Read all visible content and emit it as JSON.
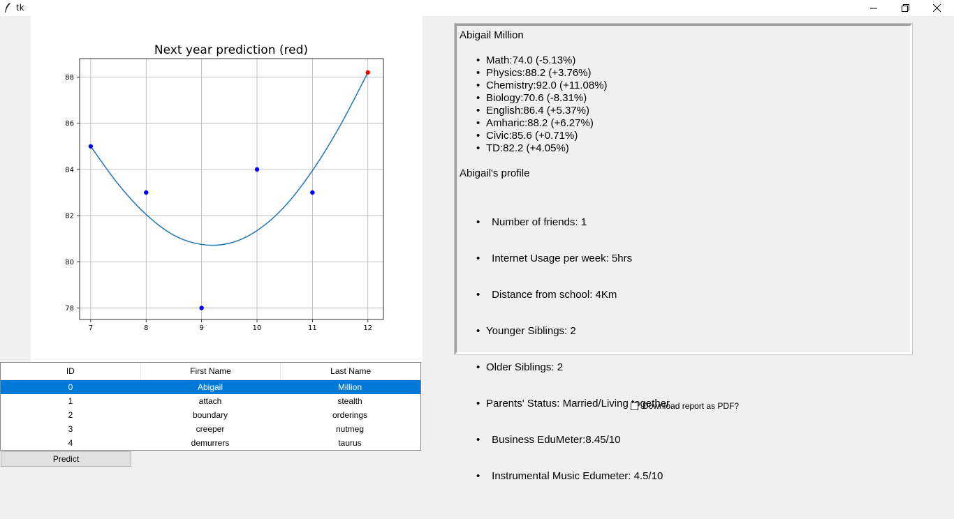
{
  "window": {
    "title": "tk"
  },
  "chart_data": {
    "type": "scatter",
    "title": "Next year prediction (red)",
    "xlabel": "",
    "ylabel": "",
    "xlim": [
      6.8,
      12.28
    ],
    "ylim": [
      77.5,
      88.8
    ],
    "xticks": [
      7,
      8,
      9,
      10,
      11,
      12
    ],
    "yticks": [
      78,
      80,
      82,
      84,
      86,
      88
    ],
    "grid": true,
    "points": [
      {
        "x": 7,
        "y": 85,
        "color": "#0000ff"
      },
      {
        "x": 8,
        "y": 83,
        "color": "#0000ff"
      },
      {
        "x": 9,
        "y": 78,
        "color": "#0000ff"
      },
      {
        "x": 10,
        "y": 84,
        "color": "#0000ff"
      },
      {
        "x": 11,
        "y": 83,
        "color": "#0000ff"
      },
      {
        "x": 12,
        "y": 88.2,
        "color": "#ff0000"
      }
    ],
    "fit_curve": {
      "color": "#1f77b4",
      "points": [
        [
          7,
          85.0
        ],
        [
          7.5,
          83.35
        ],
        [
          8,
          82.05
        ],
        [
          8.5,
          81.15
        ],
        [
          9,
          80.75
        ],
        [
          9.5,
          80.8
        ],
        [
          10,
          81.35
        ],
        [
          10.5,
          82.4
        ],
        [
          11,
          83.95
        ],
        [
          11.5,
          85.9
        ],
        [
          12,
          88.2
        ]
      ]
    }
  },
  "table": {
    "columns": [
      "ID",
      "First Name",
      "Last Name"
    ],
    "rows": [
      [
        "0",
        "Abigail",
        "Million"
      ],
      [
        "1",
        "attach",
        "stealth"
      ],
      [
        "2",
        "boundary",
        "orderings"
      ],
      [
        "3",
        "creeper",
        "nutmeg"
      ],
      [
        "4",
        "demurrers",
        "taurus"
      ]
    ],
    "selected_row": 0
  },
  "predict_button": {
    "label": "Predict"
  },
  "report": {
    "name": "Abigail Million",
    "grades": [
      "Math:74.0 (-5.13%)",
      "Physics:88.2 (+3.76%)",
      "Chemistry:92.0 (+11.08%)",
      "Biology:70.6 (-8.31%)",
      "English:86.4 (+5.37%)",
      "Amharic:88.2 (+6.27%)",
      "Civic:85.6 (+0.71%)",
      "TD:82.2 (+4.05%)"
    ],
    "profile_heading": "Abigail's profile",
    "profile": [
      " Number of friends: 1",
      " Internet Usage per week: 5hrs",
      " Distance from school: 4Km",
      "Younger Siblings: 2",
      "Older Siblings: 2",
      "Parents' Status: Married/Living together",
      " Business EduMeter:8.45/10",
      " Instrumental Music Edumeter: 4.5/10"
    ]
  },
  "pdf_checkbox": {
    "label": "Download report as PDF?",
    "checked": false
  }
}
